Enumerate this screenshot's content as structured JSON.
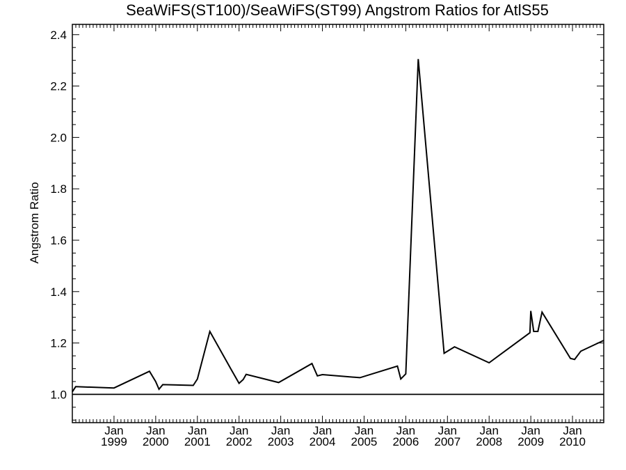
{
  "chart_data": {
    "type": "line",
    "title": "SeaWiFS(ST100)/SeaWiFS(ST99)  Angstrom Ratios for AtlS55",
    "xlabel": "",
    "ylabel": "Angstrom Ratio",
    "xlim": [
      1998.0,
      2010.75
    ],
    "ylim": [
      0.89,
      2.44
    ],
    "yticks": [
      1.0,
      1.2,
      1.4,
      1.6,
      1.8,
      2.0,
      2.2,
      2.4
    ],
    "ytick_labels": [
      "1.0",
      "1.2",
      "1.4",
      "1.6",
      "1.8",
      "2.0",
      "2.2",
      "2.4"
    ],
    "xtick_labels": [
      {
        "month": "Jan",
        "year": "1999"
      },
      {
        "month": "Jan",
        "year": "2000"
      },
      {
        "month": "Jan",
        "year": "2001"
      },
      {
        "month": "Jan",
        "year": "2002"
      },
      {
        "month": "Jan",
        "year": "2003"
      },
      {
        "month": "Jan",
        "year": "2004"
      },
      {
        "month": "Jan",
        "year": "2005"
      },
      {
        "month": "Jan",
        "year": "2006"
      },
      {
        "month": "Jan",
        "year": "2007"
      },
      {
        "month": "Jan",
        "year": "2008"
      },
      {
        "month": "Jan",
        "year": "2009"
      },
      {
        "month": "Jan",
        "year": "2010"
      }
    ],
    "grid": false,
    "series": [
      {
        "x": [
          1998.0,
          1998.08,
          1999.0,
          1999.85,
          2000.0,
          2000.08,
          2000.17,
          2000.9,
          2001.0,
          2001.3,
          2001.8,
          2002.0,
          2002.1,
          2002.17,
          2002.95,
          2003.75,
          2003.88,
          2004.0,
          2004.9,
          2005.8,
          2005.88,
          2006.0,
          2006.3,
          2006.92,
          2007.17,
          2008.0,
          2008.98,
          2009.0,
          2009.07,
          2009.17,
          2009.27,
          2009.95,
          2010.05,
          2010.2,
          2010.75
        ],
        "y": [
          1.01,
          1.03,
          1.025,
          1.09,
          1.05,
          1.02,
          1.038,
          1.035,
          1.06,
          1.245,
          1.1,
          1.043,
          1.058,
          1.078,
          1.046,
          1.12,
          1.072,
          1.077,
          1.065,
          1.11,
          1.06,
          1.08,
          2.305,
          1.16,
          1.185,
          1.123,
          1.24,
          1.325,
          1.245,
          1.245,
          1.32,
          1.14,
          1.136,
          1.168,
          1.21
        ]
      }
    ],
    "reference_lines": [
      {
        "y": 1.0
      }
    ]
  }
}
